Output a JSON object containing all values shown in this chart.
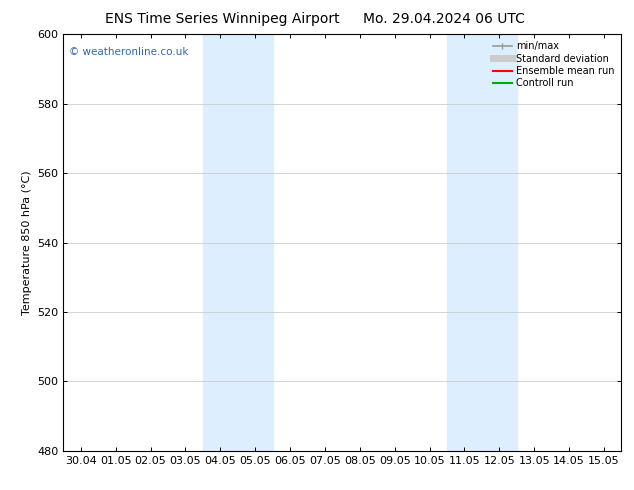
{
  "title_left": "ENS Time Series Winnipeg Airport",
  "title_right": "Mo. 29.04.2024 06 UTC",
  "ylabel": "Temperature 850 hPa (°C)",
  "ylim": [
    480,
    600
  ],
  "yticks": [
    480,
    500,
    520,
    540,
    560,
    580,
    600
  ],
  "xtick_labels": [
    "30.04",
    "01.05",
    "02.05",
    "03.05",
    "04.05",
    "05.05",
    "06.05",
    "07.05",
    "08.05",
    "09.05",
    "10.05",
    "11.05",
    "12.05",
    "13.05",
    "14.05",
    "15.05"
  ],
  "shaded_bands": [
    {
      "xstart": 4,
      "xend": 6
    },
    {
      "xstart": 11,
      "xend": 13
    }
  ],
  "shade_color": "#ddeeff",
  "watermark": "© weatheronline.co.uk",
  "watermark_color": "#3366aa",
  "bg_color": "#ffffff",
  "plot_bg_color": "#ffffff",
  "tick_color": "#000000",
  "legend_items": [
    {
      "label": "min/max",
      "color": "#999999",
      "lw": 1.2,
      "type": "minmax"
    },
    {
      "label": "Standard deviation",
      "color": "#cccccc",
      "lw": 5,
      "type": "stddev"
    },
    {
      "label": "Ensemble mean run",
      "color": "#ff0000",
      "lw": 1.5,
      "type": "line"
    },
    {
      "label": "Controll run",
      "color": "#00aa00",
      "lw": 1.5,
      "type": "line"
    }
  ],
  "figsize": [
    6.34,
    4.9
  ],
  "dpi": 100,
  "title_fontsize": 10,
  "ylabel_fontsize": 8,
  "tick_fontsize": 8,
  "legend_fontsize": 7,
  "watermark_fontsize": 7.5
}
